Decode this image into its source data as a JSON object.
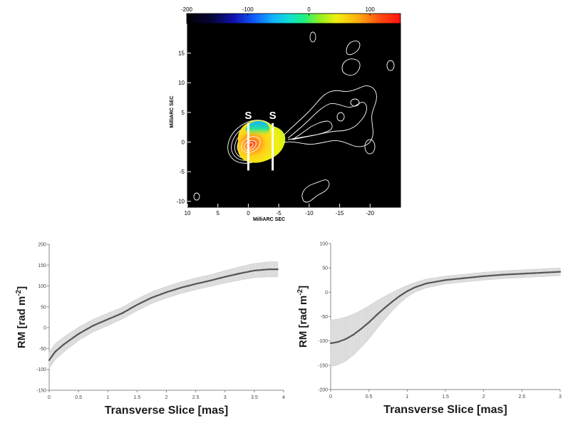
{
  "chart_data": [
    {
      "type": "heatmap",
      "title": "",
      "xlabel": "MilliARC SEC",
      "ylabel": "MilliARC SEC",
      "xlim": [
        10,
        -25
      ],
      "ylim": [
        -11,
        20
      ],
      "x_ticks": [
        10,
        5,
        0,
        -5,
        -10,
        -15,
        -20
      ],
      "y_ticks": [
        15,
        10,
        5,
        0,
        -5,
        -10
      ],
      "colorbar": {
        "range": [
          -200,
          150
        ],
        "ticks": [
          -200,
          -100,
          0,
          100
        ],
        "palette": "rainbow"
      },
      "annotations": [
        {
          "text": "S",
          "x": 0
        },
        {
          "text": "S",
          "x": -4
        }
      ]
    },
    {
      "type": "line",
      "title": "",
      "xlabel": "Transverse Slice [mas]",
      "ylabel": "RM [rad m",
      "ylabel_sup": "-2",
      "ylabel_end": "]",
      "xlim": [
        0,
        4
      ],
      "ylim": [
        -150,
        200
      ],
      "x_ticks": [
        0,
        0.5,
        1,
        1.5,
        2,
        2.5,
        3,
        3.5,
        4
      ],
      "y_ticks": [
        -150,
        -100,
        -50,
        0,
        50,
        100,
        150,
        200
      ],
      "series": [
        {
          "x": [
            0,
            0.1,
            0.25,
            0.5,
            0.75,
            1.0,
            1.25,
            1.5,
            1.75,
            2.0,
            2.25,
            2.5,
            2.75,
            3.0,
            3.25,
            3.5,
            3.75,
            3.9
          ],
          "y": [
            -78,
            -58,
            -40,
            -15,
            5,
            20,
            35,
            55,
            72,
            85,
            96,
            105,
            113,
            122,
            130,
            137,
            140,
            140
          ],
          "error": [
            20,
            19,
            18,
            16,
            15,
            15,
            14,
            14,
            14,
            14,
            14,
            14,
            14,
            15,
            16,
            17,
            18,
            18
          ]
        }
      ]
    },
    {
      "type": "line",
      "title": "",
      "xlabel": "Transverse Slice [mas]",
      "ylabel": "RM [rad m",
      "ylabel_sup": "-2",
      "ylabel_end": "]",
      "xlim": [
        0,
        3
      ],
      "ylim": [
        -200,
        100
      ],
      "x_ticks": [
        0,
        0.5,
        1,
        1.5,
        2,
        2.5,
        3
      ],
      "y_ticks": [
        -200,
        -150,
        -100,
        -50,
        0,
        50,
        100
      ],
      "series": [
        {
          "x": [
            0,
            0.1,
            0.2,
            0.3,
            0.4,
            0.5,
            0.6,
            0.7,
            0.8,
            0.9,
            1.0,
            1.1,
            1.25,
            1.5,
            1.75,
            2.0,
            2.25,
            2.5,
            2.75,
            3.0
          ],
          "y": [
            -105,
            -102,
            -96,
            -87,
            -75,
            -62,
            -47,
            -33,
            -20,
            -8,
            2,
            10,
            18,
            25,
            29,
            33,
            36,
            38,
            40,
            42
          ],
          "error": [
            48,
            47,
            45,
            42,
            38,
            34,
            29,
            24,
            19,
            15,
            12,
            10,
            9,
            8,
            8,
            8,
            8,
            8,
            8,
            8
          ]
        }
      ]
    }
  ]
}
